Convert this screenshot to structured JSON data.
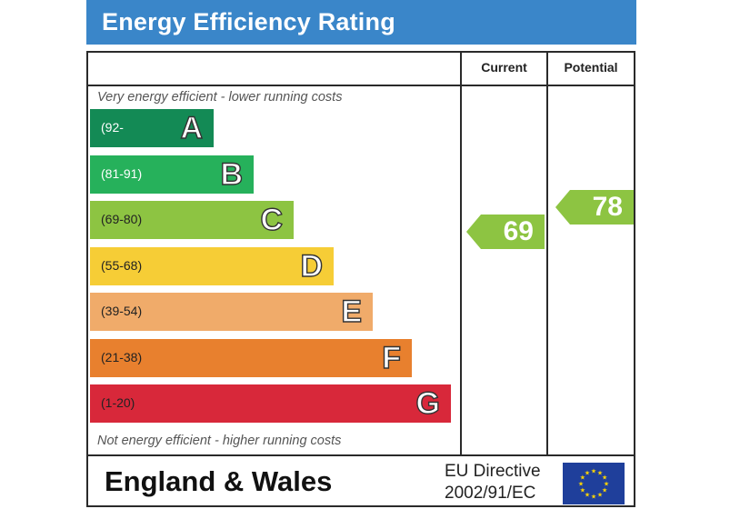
{
  "title": "Energy Efficiency Rating",
  "columns": {
    "current": "Current",
    "potential": "Potential"
  },
  "top_note": "Very energy efficient - lower running costs",
  "bottom_note": "Not energy efficient - higher running costs",
  "bands": [
    {
      "letter": "A",
      "range": "(92-",
      "color": "#138a55"
    },
    {
      "letter": "B",
      "range": "(81-91)",
      "color": "#26b15b"
    },
    {
      "letter": "C",
      "range": "(69-80)",
      "color": "#8dc442"
    },
    {
      "letter": "D",
      "range": "(55-68)",
      "color": "#f6cd36"
    },
    {
      "letter": "E",
      "range": "(39-54)",
      "color": "#f0ab6a"
    },
    {
      "letter": "F",
      "range": "(21-38)",
      "color": "#e8802e"
    },
    {
      "letter": "G",
      "range": "(1-20)",
      "color": "#d8283a"
    }
  ],
  "current_rating": {
    "value": "69",
    "band": "C",
    "color": "#8dc442"
  },
  "potential_rating": {
    "value": "78",
    "band": "C",
    "color": "#8dc442"
  },
  "footer": {
    "country": "England & Wales",
    "directive_line1": "EU Directive",
    "directive_line2": "2002/91/EC",
    "flag_icon": "eu-flag-icon"
  }
}
